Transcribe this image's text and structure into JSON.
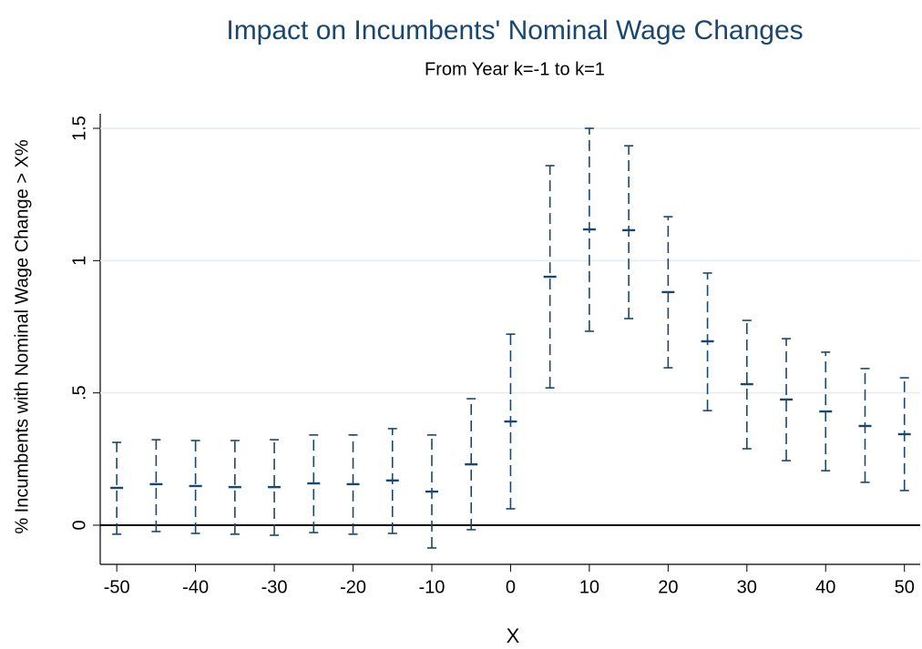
{
  "chart_data": {
    "type": "errorbar",
    "title": "Impact on Incumbents' Nominal Wage Changes",
    "subtitle": "From Year k=-1 to k=1",
    "x_label": "X",
    "y_label": "% Incumbents with Nominal Wage Change > X%",
    "x": [
      -50,
      -45,
      -40,
      -35,
      -30,
      -25,
      -20,
      -15,
      -10,
      -5,
      0,
      5,
      10,
      15,
      20,
      25,
      30,
      35,
      40,
      45,
      50
    ],
    "values": [
      0.141,
      0.155,
      0.148,
      0.144,
      0.144,
      0.158,
      0.155,
      0.169,
      0.127,
      0.23,
      0.392,
      0.939,
      1.118,
      1.115,
      0.881,
      0.695,
      0.533,
      0.475,
      0.43,
      0.375,
      0.344
    ],
    "lower": [
      -0.034,
      -0.024,
      -0.031,
      -0.034,
      -0.038,
      -0.028,
      -0.034,
      -0.031,
      -0.086,
      -0.017,
      0.062,
      0.519,
      0.733,
      0.781,
      0.595,
      0.433,
      0.289,
      0.244,
      0.206,
      0.162,
      0.131
    ],
    "upper": [
      0.313,
      0.323,
      0.32,
      0.32,
      0.323,
      0.341,
      0.341,
      0.365,
      0.341,
      0.478,
      0.722,
      1.359,
      1.5,
      1.434,
      1.166,
      0.953,
      0.774,
      0.705,
      0.654,
      0.592,
      0.557
    ],
    "color": "#1a476f",
    "reference_line": 0,
    "xlim": [
      -52.1,
      52.0
    ],
    "ylim": [
      -0.148,
      1.555
    ],
    "xticks": [
      -50,
      -40,
      -30,
      -20,
      -10,
      0,
      10,
      20,
      30,
      40,
      50
    ],
    "yticks": [
      0,
      {
        "value": 0.5,
        "label": ".5"
      },
      1,
      1.5
    ],
    "grid": true
  }
}
